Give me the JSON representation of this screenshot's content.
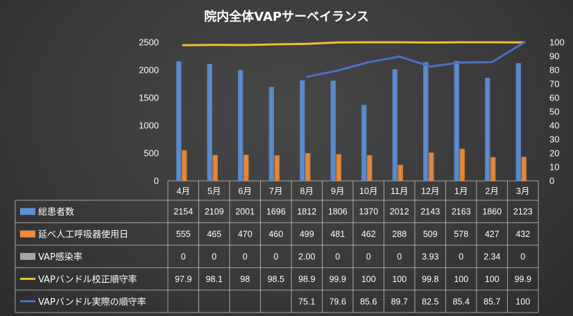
{
  "chart_data": {
    "type": "bar",
    "title": "院内全体VAPサーベイランス",
    "categories": [
      "4月",
      "5月",
      "6月",
      "7月",
      "8月",
      "9月",
      "10月",
      "11月",
      "12月",
      "1月",
      "2月",
      "3月"
    ],
    "y_left": {
      "lim": [
        0,
        2500
      ],
      "ticks": [
        0,
        500,
        1000,
        1500,
        2000,
        2500
      ]
    },
    "y_right": {
      "lim": [
        0,
        100
      ],
      "ticks": [
        0,
        10,
        20,
        30,
        40,
        50,
        60,
        70,
        80,
        90,
        100
      ]
    },
    "grid": false,
    "legend": "table-bottom",
    "series": [
      {
        "name": "総患者数",
        "kind": "bar",
        "axis": "left",
        "color": "#5b8fd6",
        "values": [
          2154,
          2109,
          2001,
          1696,
          1812,
          1806,
          1370,
          2012,
          2143,
          2163,
          1860,
          2123
        ],
        "labels": [
          "2154",
          "2109",
          "2001",
          "1696",
          "1812",
          "1806",
          "1370",
          "2012",
          "2143",
          "2163",
          "1860",
          "2123"
        ]
      },
      {
        "name": "延べ人工呼吸器使用日",
        "kind": "bar",
        "axis": "left",
        "color": "#ee8a3c",
        "values": [
          555,
          465,
          470,
          460,
          499,
          481,
          462,
          288,
          509,
          578,
          427,
          432
        ],
        "labels": [
          "555",
          "465",
          "470",
          "460",
          "499",
          "481",
          "462",
          "288",
          "509",
          "578",
          "427",
          "432"
        ]
      },
      {
        "name": "VAP感染率",
        "kind": "bar",
        "axis": "left",
        "color": "#a6a6a6",
        "values": [
          0,
          0,
          0,
          0,
          2.0,
          0,
          0,
          0,
          3.93,
          0,
          2.34,
          0
        ],
        "labels": [
          "0",
          "0",
          "0",
          "0",
          "2.00",
          "0",
          "0",
          "0",
          "3.93",
          "0",
          "2.34",
          "0"
        ]
      },
      {
        "name": "VAPバンドル校正順守率",
        "kind": "line",
        "axis": "right",
        "color": "#f2c12e",
        "values": [
          97.9,
          98.1,
          98,
          98.5,
          98.9,
          99.9,
          100,
          100,
          99.8,
          100,
          100,
          99.9
        ],
        "labels": [
          "97.9",
          "98.1",
          "98",
          "98.5",
          "98.9",
          "99.9",
          "100",
          "100",
          "99.8",
          "100",
          "100",
          "99.9"
        ]
      },
      {
        "name": "VAPバンドル実際の順守率",
        "kind": "line",
        "axis": "right",
        "color": "#4a72c8",
        "values": [
          null,
          null,
          null,
          null,
          75.1,
          79.6,
          85.6,
          89.7,
          82.5,
          85.4,
          85.7,
          100
        ],
        "labels": [
          "",
          "",
          "",
          "",
          "75.1",
          "79.6",
          "85.6",
          "89.7",
          "82.5",
          "85.4",
          "85.7",
          "100"
        ]
      }
    ]
  }
}
